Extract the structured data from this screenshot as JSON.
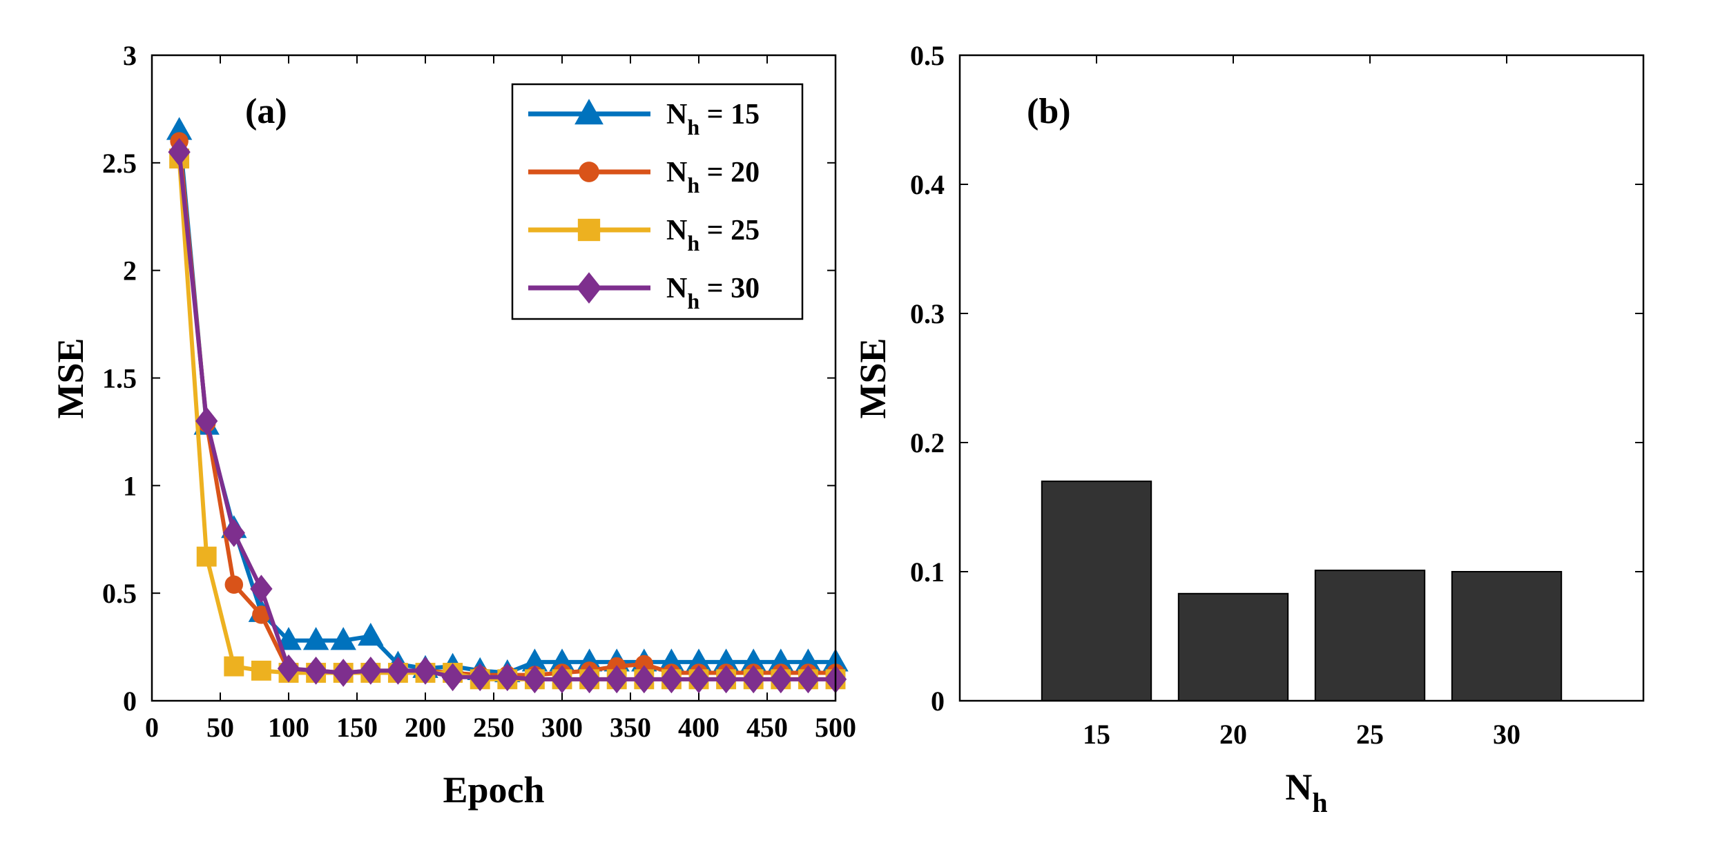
{
  "chart_data": [
    {
      "type": "line",
      "panel_label": "(a)",
      "xlabel": "Epoch",
      "ylabel": "MSE",
      "xlim": [
        0,
        500
      ],
      "ylim": [
        0,
        3
      ],
      "xticks": [
        0,
        50,
        100,
        150,
        200,
        250,
        300,
        350,
        400,
        450,
        500
      ],
      "xtick_labels": [
        "0",
        "50",
        "100",
        "150",
        "200",
        "250",
        "300",
        "350",
        "400",
        "450",
        "500"
      ],
      "yticks": [
        0,
        0.5,
        1,
        1.5,
        2,
        2.5,
        3
      ],
      "ytick_labels": [
        "0",
        "0.5",
        "1",
        "1.5",
        "2",
        "2.5",
        "3"
      ],
      "legend_position": "top-right",
      "x": [
        20,
        40,
        60,
        80,
        100,
        120,
        140,
        160,
        180,
        200,
        220,
        240,
        260,
        280,
        300,
        320,
        340,
        360,
        380,
        400,
        420,
        440,
        460,
        480,
        500
      ],
      "series": [
        {
          "name_main": "N",
          "name_sub": "h",
          "name_rest": " = 15",
          "color": "#0072BD",
          "marker": "triangle",
          "values": [
            2.65,
            1.28,
            0.8,
            0.41,
            0.28,
            0.28,
            0.28,
            0.3,
            0.17,
            0.15,
            0.16,
            0.14,
            0.13,
            0.18,
            0.18,
            0.18,
            0.18,
            0.18,
            0.18,
            0.18,
            0.18,
            0.18,
            0.18,
            0.18,
            0.18
          ]
        },
        {
          "name_main": "N",
          "name_sub": "h",
          "name_rest": " = 20",
          "color": "#D95319",
          "marker": "circle",
          "values": [
            2.6,
            1.29,
            0.54,
            0.4,
            0.14,
            0.14,
            0.13,
            0.14,
            0.13,
            0.14,
            0.13,
            0.12,
            0.12,
            0.12,
            0.13,
            0.14,
            0.16,
            0.17,
            0.13,
            0.13,
            0.13,
            0.13,
            0.13,
            0.13,
            0.13
          ]
        },
        {
          "name_main": "N",
          "name_sub": "h",
          "name_rest": " = 25",
          "color": "#EDB120",
          "marker": "square",
          "values": [
            2.52,
            0.67,
            0.16,
            0.14,
            0.13,
            0.13,
            0.13,
            0.13,
            0.13,
            0.13,
            0.13,
            0.1,
            0.1,
            0.1,
            0.1,
            0.1,
            0.1,
            0.1,
            0.1,
            0.1,
            0.1,
            0.1,
            0.1,
            0.1,
            0.1
          ]
        },
        {
          "name_main": "N",
          "name_sub": "h",
          "name_rest": " = 30",
          "color": "#7E2F8E",
          "marker": "diamond",
          "values": [
            2.55,
            1.3,
            0.78,
            0.52,
            0.15,
            0.14,
            0.13,
            0.14,
            0.14,
            0.14,
            0.11,
            0.11,
            0.11,
            0.1,
            0.1,
            0.1,
            0.1,
            0.1,
            0.1,
            0.1,
            0.1,
            0.1,
            0.1,
            0.1,
            0.1
          ]
        }
      ]
    },
    {
      "type": "bar",
      "panel_label": "(b)",
      "xlabel_main": "N",
      "xlabel_sub": "h",
      "ylabel": "MSE",
      "xlim": [
        10,
        35
      ],
      "ylim": [
        0,
        0.5
      ],
      "categories": [
        "15",
        "20",
        "25",
        "30"
      ],
      "category_values": [
        15,
        20,
        25,
        30
      ],
      "values": [
        0.17,
        0.083,
        0.101,
        0.1
      ],
      "bar_color": "#333333",
      "yticks": [
        0,
        0.1,
        0.2,
        0.3,
        0.4,
        0.5
      ],
      "ytick_labels": [
        "0",
        "0.1",
        "0.2",
        "0.3",
        "0.4",
        "0.5"
      ]
    }
  ]
}
